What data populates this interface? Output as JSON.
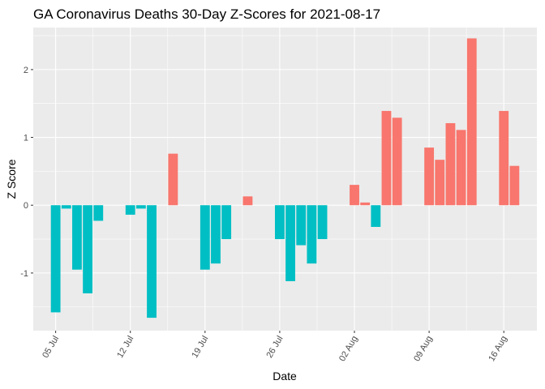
{
  "chart_data": {
    "type": "bar",
    "title": "GA Coronavirus Deaths 30-Day Z-Scores for 2021-08-17",
    "xlabel": "Date",
    "ylabel": "Z Score",
    "x_ticks": [
      "05 Jul",
      "12 Jul",
      "19 Jul",
      "26 Jul",
      "02 Aug",
      "09 Aug",
      "16 Aug"
    ],
    "y_ticks": [
      -1,
      0,
      1,
      2
    ],
    "ylim": [
      -1.85,
      2.62
    ],
    "grid": true,
    "legend": "none",
    "colors": {
      "positive": "#F8766D",
      "negative": "#00BFC4",
      "panel": "#EBEBEB",
      "grid": "#FFFFFF"
    },
    "series": [
      {
        "values": [
          {
            "date": "2021-07-05",
            "value": -1.58
          },
          {
            "date": "2021-07-06",
            "value": -0.05
          },
          {
            "date": "2021-07-07",
            "value": -0.95
          },
          {
            "date": "2021-07-08",
            "value": -1.3
          },
          {
            "date": "2021-07-09",
            "value": -0.23
          },
          {
            "date": "2021-07-12",
            "value": -0.14
          },
          {
            "date": "2021-07-13",
            "value": -0.05
          },
          {
            "date": "2021-07-14",
            "value": -1.66
          },
          {
            "date": "2021-07-16",
            "value": 0.76
          },
          {
            "date": "2021-07-19",
            "value": -0.95
          },
          {
            "date": "2021-07-20",
            "value": -0.86
          },
          {
            "date": "2021-07-21",
            "value": -0.5
          },
          {
            "date": "2021-07-23",
            "value": 0.13
          },
          {
            "date": "2021-07-26",
            "value": -0.5
          },
          {
            "date": "2021-07-27",
            "value": -1.12
          },
          {
            "date": "2021-07-28",
            "value": -0.59
          },
          {
            "date": "2021-07-29",
            "value": -0.86
          },
          {
            "date": "2021-07-30",
            "value": -0.5
          },
          {
            "date": "2021-08-02",
            "value": 0.3
          },
          {
            "date": "2021-08-03",
            "value": 0.04
          },
          {
            "date": "2021-08-04",
            "value": -0.32
          },
          {
            "date": "2021-08-05",
            "value": 1.39
          },
          {
            "date": "2021-08-06",
            "value": 1.29
          },
          {
            "date": "2021-08-09",
            "value": 0.85
          },
          {
            "date": "2021-08-10",
            "value": 0.67
          },
          {
            "date": "2021-08-11",
            "value": 1.21
          },
          {
            "date": "2021-08-12",
            "value": 1.11
          },
          {
            "date": "2021-08-13",
            "value": 2.46
          },
          {
            "date": "2021-08-16",
            "value": 1.39
          },
          {
            "date": "2021-08-17",
            "value": 0.58
          }
        ]
      }
    ]
  }
}
